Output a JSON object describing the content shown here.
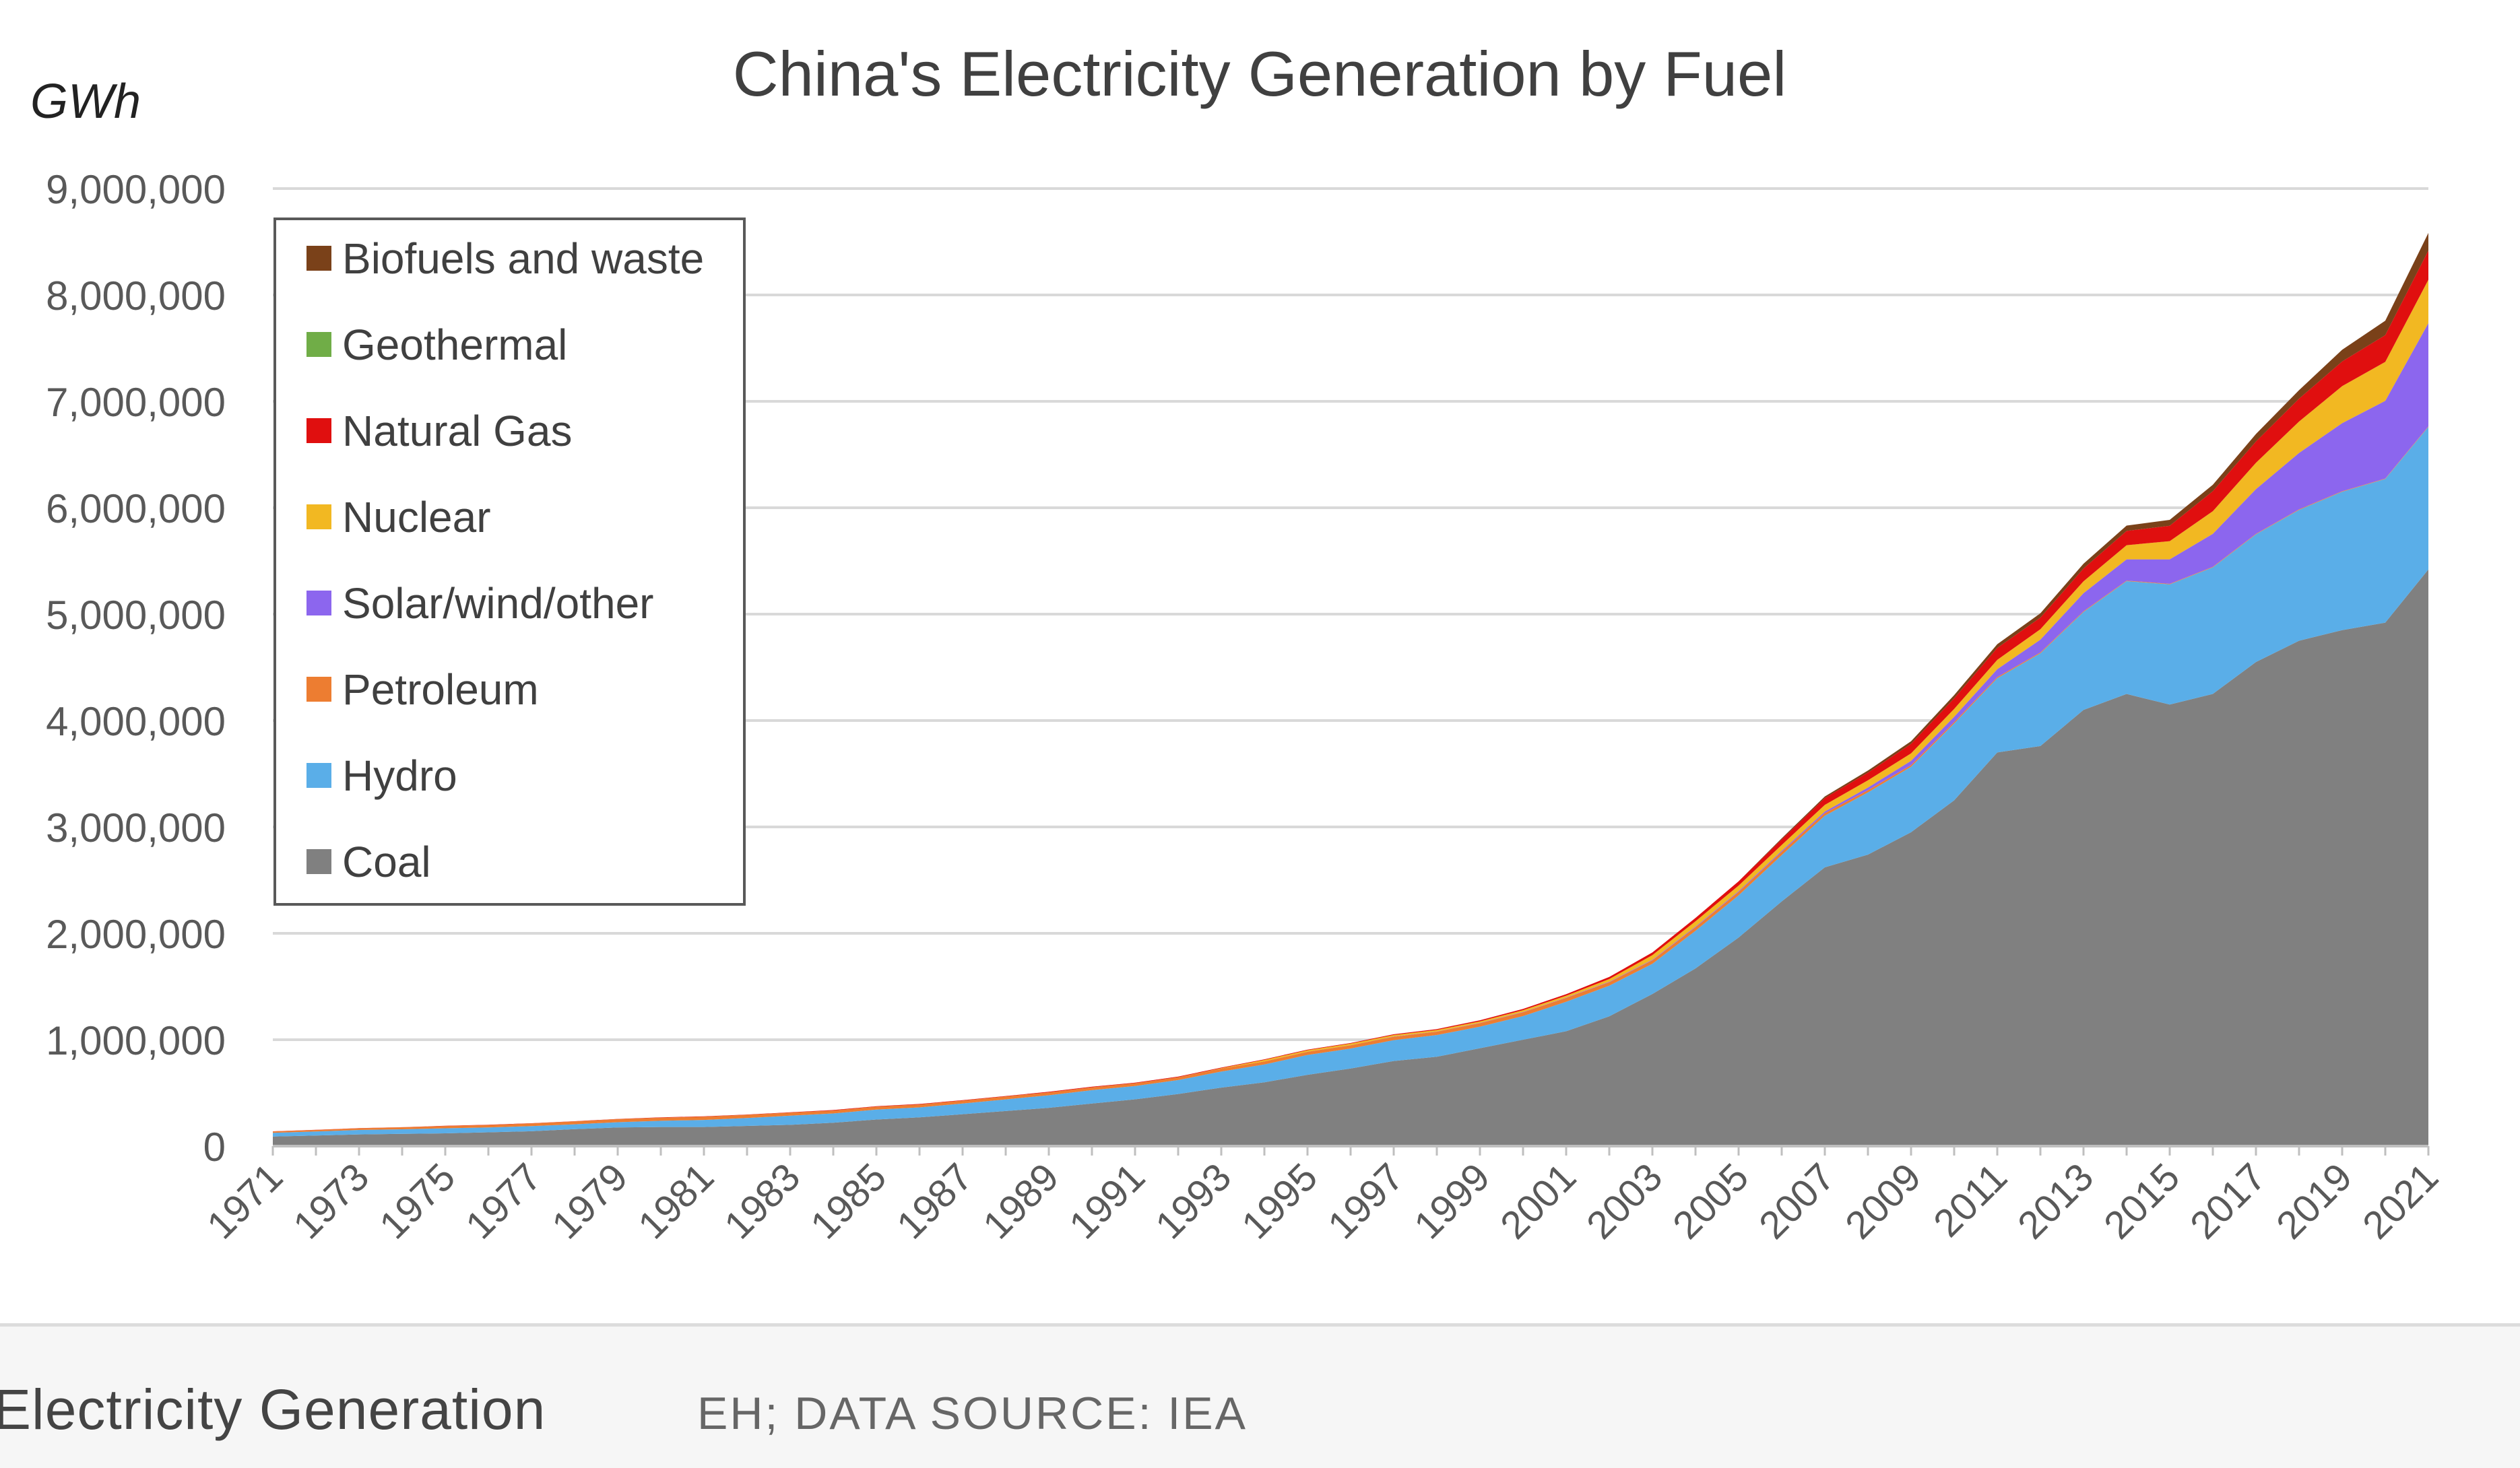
{
  "caption": {
    "main": "Electricity Generation",
    "source": "EH; DATA SOURCE: IEA"
  },
  "chart_data": {
    "type": "area",
    "stacked": true,
    "title": "China's Electricity Generation by Fuel",
    "ylabel": "GWh",
    "xlabel": "",
    "ylim": [
      0,
      9000000
    ],
    "y_ticks": [
      "0",
      "1,000,000",
      "2,000,000",
      "3,000,000",
      "4,000,000",
      "5,000,000",
      "6,000,000",
      "7,000,000",
      "8,000,000",
      "9,000,000"
    ],
    "x_tick_labels": [
      "1971",
      "1973",
      "1975",
      "1977",
      "1979",
      "1981",
      "1983",
      "1985",
      "1987",
      "1989",
      "1991",
      "1993",
      "1995",
      "1997",
      "1999",
      "2001",
      "2003",
      "2005",
      "2007",
      "2009",
      "2011",
      "2013",
      "2015",
      "2017",
      "2019",
      "2021"
    ],
    "grid": true,
    "legend_position": "top-left",
    "legend_order": [
      "Biofuels and waste",
      "Geothermal",
      "Natural Gas",
      "Nuclear",
      "Solar/wind/other",
      "Petroleum",
      "Hydro",
      "Coal"
    ],
    "years": [
      1971,
      1972,
      1973,
      1974,
      1975,
      1976,
      1977,
      1978,
      1979,
      1980,
      1981,
      1982,
      1983,
      1984,
      1985,
      1986,
      1987,
      1988,
      1989,
      1990,
      1991,
      1992,
      1993,
      1994,
      1995,
      1996,
      1997,
      1998,
      1999,
      2000,
      2001,
      2002,
      2003,
      2004,
      2005,
      2006,
      2007,
      2008,
      2009,
      2010,
      2011,
      2012,
      2013,
      2014,
      2015,
      2016,
      2017,
      2018,
      2019,
      2020,
      2021
    ],
    "series": [
      {
        "name": "Coal",
        "color": "#808080",
        "values": [
          90000,
          100000,
          110000,
          115000,
          120000,
          130000,
          140000,
          160000,
          175000,
          180000,
          180000,
          190000,
          200000,
          220000,
          250000,
          270000,
          300000,
          330000,
          360000,
          400000,
          440000,
          490000,
          550000,
          600000,
          670000,
          730000,
          800000,
          840000,
          920000,
          1000000,
          1080000,
          1220000,
          1430000,
          1670000,
          1960000,
          2300000,
          2620000,
          2740000,
          2950000,
          3250000,
          3700000,
          3760000,
          4100000,
          4250000,
          4150000,
          4250000,
          4550000,
          4750000,
          4850000,
          4920000,
          5420000
        ]
      },
      {
        "name": "Hydro",
        "color": "#5aaee8",
        "values": [
          35000,
          38000,
          42000,
          43000,
          48000,
          46000,
          48000,
          45000,
          50000,
          58000,
          66000,
          74000,
          86000,
          87000,
          93000,
          94000,
          100000,
          109000,
          118000,
          126000,
          125000,
          131000,
          151000,
          167000,
          187000,
          187000,
          196000,
          204000,
          203000,
          222000,
          277000,
          288000,
          284000,
          354000,
          397000,
          435000,
          485000,
          585000,
          616000,
          722000,
          698000,
          872000,
          920000,
          1060000,
          1130000,
          1190000,
          1200000,
          1230000,
          1300000,
          1350000,
          1340000
        ]
      },
      {
        "name": "Petroleum",
        "color": "#ed7d31",
        "values": [
          13000,
          14000,
          16000,
          19000,
          21000,
          23000,
          25000,
          27000,
          29000,
          30000,
          31000,
          30000,
          29000,
          28000,
          28000,
          28000,
          28000,
          28000,
          28000,
          27000,
          27000,
          27000,
          28000,
          29000,
          30000,
          31000,
          32000,
          32000,
          33000,
          36000,
          36000,
          33000,
          33000,
          33000,
          32000,
          31000,
          25000,
          20000,
          15000,
          13000,
          10000,
          8000,
          7000,
          5000,
          5000,
          5000,
          5000,
          5000,
          5000,
          5000,
          5000
        ]
      },
      {
        "name": "Solar/wind/other",
        "color": "#8c66ee",
        "values": [
          0,
          0,
          0,
          0,
          0,
          0,
          0,
          0,
          0,
          0,
          0,
          0,
          0,
          0,
          0,
          0,
          0,
          0,
          0,
          0,
          0,
          0,
          0,
          0,
          1000,
          1000,
          2000,
          2000,
          2000,
          3000,
          3000,
          4000,
          5000,
          6000,
          7000,
          10000,
          15000,
          25000,
          40000,
          50000,
          75000,
          120000,
          170000,
          200000,
          230000,
          310000,
          420000,
          530000,
          640000,
          730000,
          970000
        ]
      },
      {
        "name": "Nuclear",
        "color": "#f2b822",
        "values": [
          0,
          0,
          0,
          0,
          0,
          0,
          0,
          0,
          0,
          0,
          0,
          0,
          0,
          0,
          0,
          0,
          0,
          0,
          0,
          0,
          0,
          0,
          3000,
          14000,
          13000,
          14000,
          14000,
          14000,
          15000,
          17000,
          18000,
          25000,
          43000,
          50000,
          53000,
          55000,
          62000,
          68000,
          70000,
          74000,
          87000,
          98000,
          112000,
          133000,
          171000,
          213000,
          248000,
          295000,
          348000,
          366000,
          408000
        ]
      },
      {
        "name": "Natural Gas",
        "color": "#e00f0f",
        "values": [
          1000,
          1000,
          1000,
          1000,
          2000,
          2000,
          2000,
          2000,
          2000,
          3000,
          3000,
          3000,
          3000,
          4000,
          4000,
          4000,
          4000,
          4000,
          5000,
          5000,
          5000,
          6000,
          6000,
          6000,
          6000,
          6000,
          7000,
          8000,
          10000,
          12000,
          14000,
          20000,
          25000,
          32000,
          40000,
          52000,
          65000,
          72000,
          90000,
          100000,
          113000,
          110000,
          120000,
          134000,
          145000,
          188000,
          200000,
          215000,
          232000,
          252000,
          275000
        ]
      },
      {
        "name": "Geothermal",
        "color": "#70ad47",
        "values": [
          0,
          0,
          0,
          0,
          0,
          0,
          0,
          0,
          0,
          0,
          0,
          0,
          0,
          0,
          0,
          0,
          0,
          0,
          0,
          0,
          0,
          0,
          0,
          0,
          0,
          0,
          0,
          0,
          0,
          0,
          0,
          0,
          0,
          0,
          0,
          0,
          0,
          0,
          0,
          0,
          0,
          0,
          0,
          0,
          0,
          0,
          0,
          0,
          0,
          0,
          0
        ]
      },
      {
        "name": "Biofuels and waste",
        "color": "#7a4119",
        "values": [
          0,
          0,
          0,
          0,
          0,
          0,
          0,
          0,
          0,
          0,
          0,
          0,
          0,
          0,
          0,
          0,
          0,
          0,
          0,
          0,
          0,
          0,
          0,
          0,
          0,
          0,
          0,
          0,
          0,
          0,
          0,
          0,
          0,
          0,
          0,
          10000,
          15000,
          20000,
          25000,
          30000,
          35000,
          40000,
          45000,
          50000,
          55000,
          60000,
          70000,
          80000,
          110000,
          135000,
          165000
        ]
      }
    ]
  }
}
